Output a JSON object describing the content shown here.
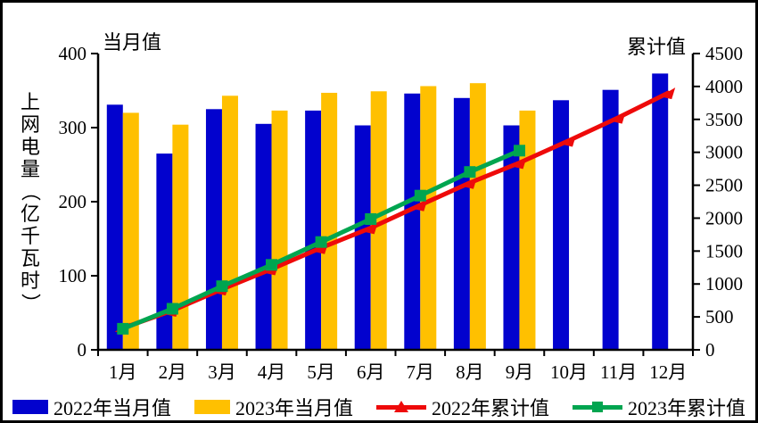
{
  "chart_data": {
    "type": "combo-bar-line",
    "y_title": "上网电量（亿千瓦时）",
    "categories": [
      "1月",
      "2月",
      "3月",
      "4月",
      "5月",
      "6月",
      "7月",
      "8月",
      "9月",
      "10月",
      "11月",
      "12月"
    ],
    "series": [
      {
        "name": "2022年当月值",
        "type": "bar",
        "axis": "left",
        "color": "#0202CE",
        "values": [
          331,
          265,
          325,
          305,
          323,
          303,
          346,
          340,
          303,
          337,
          351,
          373
        ]
      },
      {
        "name": "2023年当月值",
        "type": "bar",
        "axis": "left",
        "color": "#FFC000",
        "values": [
          320,
          304,
          343,
          323,
          347,
          349,
          356,
          360,
          323,
          null,
          null,
          null
        ]
      },
      {
        "name": "2022年累计值",
        "type": "line",
        "axis": "right",
        "color": "#EE0A0A",
        "marker": "triangle",
        "values": [
          331,
          596,
          921,
          1226,
          1549,
          1852,
          2198,
          2538,
          2841,
          3178,
          3529,
          3902
        ]
      },
      {
        "name": "2023年累计值",
        "type": "line",
        "axis": "right",
        "color": "#00A550",
        "marker": "square",
        "values": [
          320,
          624,
          967,
          1290,
          1637,
          1986,
          2342,
          2702,
          3025,
          null,
          null,
          null
        ]
      }
    ],
    "left_axis": {
      "title": "当月值",
      "min": 0,
      "max": 400,
      "step": 100,
      "ticks": [
        "0",
        "100",
        "200",
        "300",
        "400"
      ]
    },
    "right_axis": {
      "title": "累计值",
      "min": 0,
      "max": 4500,
      "step": 500,
      "ticks": [
        "0",
        "500",
        "1000",
        "1500",
        "2000",
        "2500",
        "3000",
        "3500",
        "4000",
        "4500"
      ]
    },
    "grid": false,
    "legend_position": "bottom"
  }
}
